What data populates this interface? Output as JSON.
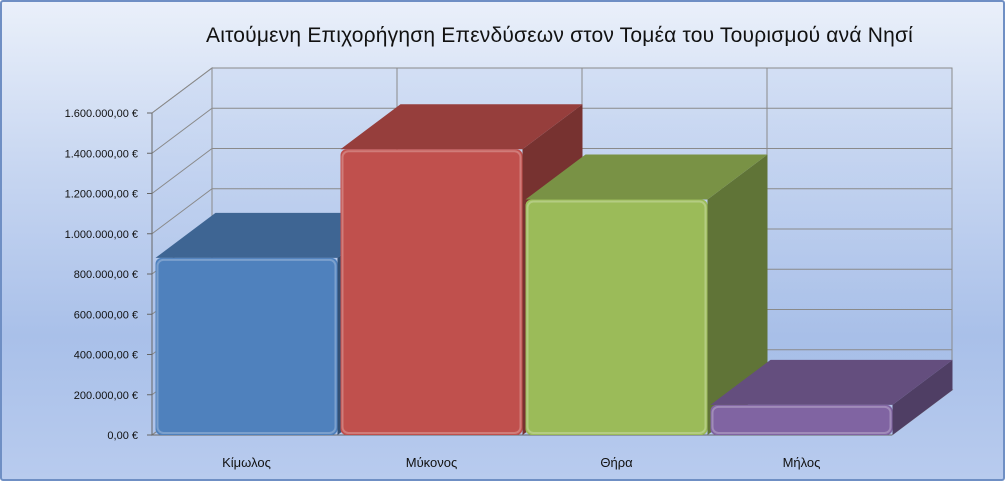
{
  "chart_data": {
    "type": "bar",
    "style": "3d-column",
    "title": "Αιτούμενη Επιχορήγηση Επενδύσεων στον Τομέα του Τουρισμού ανά Νησί",
    "xlabel": "",
    "ylabel": "",
    "categories": [
      "Κίμωλος",
      "Μύκονος",
      "Θήρα",
      "Μήλος"
    ],
    "values": [
      880000,
      1420000,
      1170000,
      150000
    ],
    "ylim": [
      0,
      1600000
    ],
    "yticks": [
      0,
      200000,
      400000,
      600000,
      800000,
      1000000,
      1200000,
      1400000,
      1600000
    ],
    "ytick_labels": [
      "0,00 €",
      "200.000,00 €",
      "400.000,00 €",
      "600.000,00 €",
      "800.000,00 €",
      "1.000.000,00 €",
      "1.200.000,00 €",
      "1.400.000,00 €",
      "1.600.000,00 €"
    ],
    "bar_colors": [
      "#4f81bd",
      "#c0504d",
      "#9bbb59",
      "#8064a2"
    ],
    "grid": true,
    "legend": "none"
  }
}
